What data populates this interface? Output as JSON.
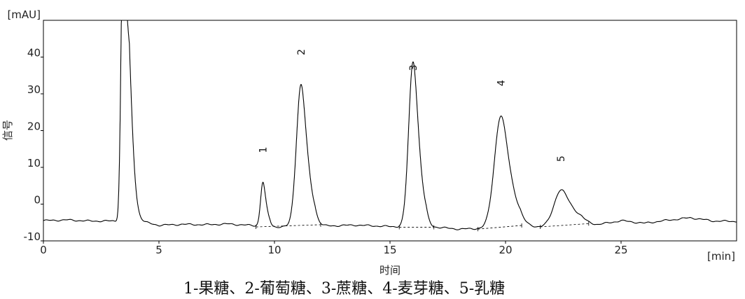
{
  "chart_data": {
    "type": "line",
    "title": "",
    "xlabel": "时间",
    "ylabel": "信号",
    "x_unit": "[min]",
    "y_unit": "[mAU]",
    "xlim": [
      0,
      30
    ],
    "ylim": [
      -10,
      50
    ],
    "x_ticks": [
      "0",
      "5",
      "10",
      "15",
      "20",
      "25"
    ],
    "y_ticks": [
      "-10",
      "0",
      "10",
      "20",
      "30",
      "40"
    ],
    "grid": false,
    "line_color": "#000000",
    "baseline_points": [
      [
        0,
        -4.5
      ],
      [
        1,
        -4.3
      ],
      [
        2,
        -4.6
      ],
      [
        3,
        -4.6
      ],
      [
        4.3,
        -5.0
      ],
      [
        5,
        -5.8
      ],
      [
        6,
        -5.5
      ],
      [
        7,
        -5.6
      ],
      [
        8,
        -5.4
      ],
      [
        9,
        -5.8
      ],
      [
        10,
        -6.2
      ],
      [
        12,
        -6.0
      ],
      [
        13.5,
        -5.7
      ],
      [
        15,
        -6.1
      ],
      [
        17,
        -6.3
      ],
      [
        18,
        -6.8
      ],
      [
        19,
        -6.6
      ],
      [
        20.5,
        -5.8
      ],
      [
        21.5,
        -6.2
      ],
      [
        23,
        -5.4
      ],
      [
        24,
        -5.6
      ],
      [
        25,
        -4.5
      ],
      [
        26,
        -5.2
      ],
      [
        27,
        -4.4
      ],
      [
        28,
        -3.7
      ],
      [
        29,
        -4.6
      ],
      [
        30,
        -4.7
      ]
    ],
    "peaks": [
      {
        "label": "",
        "rt": 3.45,
        "height": 80,
        "off_scale": true
      },
      {
        "label": "1",
        "rt": 9.5,
        "height": 12.0
      },
      {
        "label": "2",
        "rt": 11.15,
        "height": 38.6
      },
      {
        "label": "3",
        "rt": 16.0,
        "height": 45.0
      },
      {
        "label": "4",
        "rt": 19.8,
        "height": 30.2
      },
      {
        "label": "5",
        "rt": 22.4,
        "height": 9.6
      }
    ],
    "integration_baselines": [
      [
        [
          9.2,
          -6.2
        ],
        [
          12.0,
          -5.6
        ]
      ],
      [
        [
          15.4,
          -6.3
        ],
        [
          16.9,
          -6.3
        ]
      ],
      [
        [
          18.8,
          -6.8
        ],
        [
          20.7,
          -5.8
        ]
      ],
      [
        [
          21.5,
          -6.2
        ],
        [
          23.6,
          -5.3
        ]
      ]
    ]
  },
  "caption": "1-果糖、2-葡萄糖、3-蔗糖、4-麦芽糖、5-乳糖"
}
